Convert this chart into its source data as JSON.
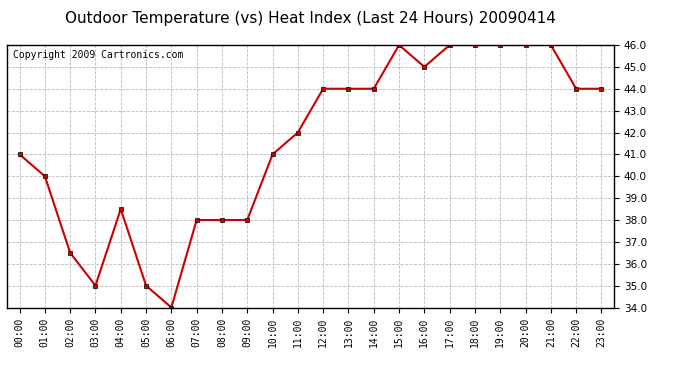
{
  "title": "Outdoor Temperature (vs) Heat Index (Last 24 Hours) 20090414",
  "copyright": "Copyright 2009 Cartronics.com",
  "x_labels": [
    "00:00",
    "01:00",
    "02:00",
    "03:00",
    "04:00",
    "05:00",
    "06:00",
    "07:00",
    "08:00",
    "09:00",
    "10:00",
    "11:00",
    "12:00",
    "13:00",
    "14:00",
    "15:00",
    "16:00",
    "17:00",
    "18:00",
    "19:00",
    "20:00",
    "21:00",
    "22:00",
    "23:00"
  ],
  "y_values": [
    41.0,
    40.0,
    36.5,
    35.0,
    38.5,
    35.0,
    34.0,
    38.0,
    38.0,
    38.0,
    41.0,
    42.0,
    44.0,
    44.0,
    44.0,
    46.0,
    45.0,
    46.0,
    46.0,
    46.0,
    46.0,
    46.0,
    44.0,
    44.0
  ],
  "line_color": "#cc0000",
  "marker_color": "#000000",
  "background_color": "#ffffff",
  "grid_color": "#bbbbbb",
  "ylim_min": 34.0,
  "ylim_max": 46.0,
  "ytick_step": 1.0,
  "title_fontsize": 11,
  "copyright_fontsize": 7
}
